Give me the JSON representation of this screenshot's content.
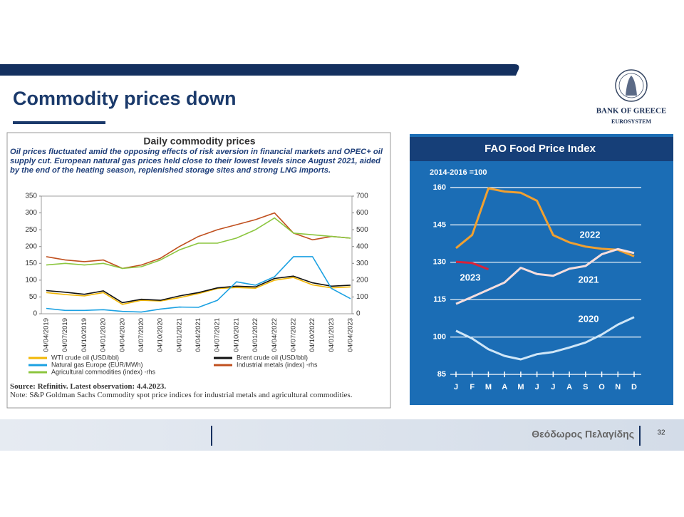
{
  "title": "Commodity prices down",
  "logo": {
    "name": "BANK OF GREECE",
    "tagline": "EUROSYSTEM"
  },
  "footer": {
    "author": "Θεόδωρος Πελαγίδης",
    "page": "32"
  },
  "chart_data": [
    {
      "type": "line",
      "title": "Daily commodity prices",
      "subtitle": "Oil prices fluctuated amid the opposing effects of risk aversion in financial markets and OPEC+ oil supply cut. European natural gas prices held close to their lowest levels since August 2021, aided by the end of the heating season, replenished storage sites and strong LNG imports.",
      "source": "Source: Refinitiv. Latest observation: 4.4.2023.",
      "note": "Note: S&P Goldman Sachs Commodity spot price indices for industrial metals and agricultural commodities.",
      "categories": [
        "04/04/2019",
        "04/07/2019",
        "04/10/2019",
        "04/01/2020",
        "04/04/2020",
        "04/07/2020",
        "04/10/2020",
        "04/01/2021",
        "04/04/2021",
        "04/07/2021",
        "04/10/2021",
        "04/01/2022",
        "04/04/2022",
        "04/07/2022",
        "04/10/2022",
        "04/01/2023",
        "04/04/2023"
      ],
      "ylim": [
        0,
        350
      ],
      "yticks": [
        0,
        50,
        100,
        150,
        200,
        250,
        300,
        350
      ],
      "y2lim": [
        0,
        700
      ],
      "y2ticks": [
        0,
        100,
        200,
        300,
        400,
        500,
        600,
        700
      ],
      "grid": false,
      "series": [
        {
          "name": "WTI crude oil (USD/bbl)",
          "color": "#f2b705",
          "values": [
            63,
            57,
            53,
            63,
            28,
            40,
            38,
            48,
            60,
            75,
            78,
            76,
            100,
            108,
            86,
            77,
            80
          ]
        },
        {
          "name": "Brent crude oil (USD/bbl)",
          "color": "#111111",
          "values": [
            69,
            64,
            58,
            68,
            33,
            43,
            40,
            53,
            63,
            77,
            82,
            80,
            105,
            112,
            92,
            82,
            85
          ]
        },
        {
          "name": "Natural gas Europe (EUR/MWh)",
          "color": "#1ba1e2",
          "values": [
            16,
            10,
            10,
            12,
            7,
            5,
            14,
            20,
            19,
            40,
            95,
            85,
            110,
            170,
            170,
            75,
            45
          ]
        },
        {
          "name": "Industrial metals (index) -rhs",
          "color": "#c0501f",
          "axis": "y2",
          "values": [
            340,
            320,
            310,
            320,
            270,
            290,
            330,
            400,
            460,
            500,
            530,
            560,
            600,
            480,
            440,
            460,
            450
          ]
        },
        {
          "name": "Agricultural commodities (index) -rhs",
          "color": "#8cc63f",
          "axis": "y2",
          "values": [
            290,
            300,
            290,
            300,
            270,
            280,
            320,
            380,
            420,
            420,
            450,
            500,
            570,
            480,
            470,
            460,
            450
          ]
        }
      ]
    },
    {
      "type": "line",
      "title": "FAO Food Price Index",
      "subtitle": "2014-2016 =100",
      "categories": [
        "J",
        "F",
        "M",
        "A",
        "M",
        "J",
        "J",
        "A",
        "S",
        "O",
        "N",
        "D"
      ],
      "ylim": [
        85,
        160
      ],
      "yticks": [
        85,
        100,
        115,
        130,
        145,
        160
      ],
      "grid": true,
      "series": [
        {
          "name": "2022",
          "color": "#f0a030",
          "values": [
            135.7,
            141,
            159.7,
            158.4,
            157.9,
            154.7,
            140.9,
            138,
            136.3,
            135.4,
            135,
            132.4
          ]
        },
        {
          "name": "2021",
          "color": "#f6dede",
          "values": [
            113.3,
            116.1,
            119,
            121.9,
            127.8,
            125.3,
            124.6,
            127.4,
            128.5,
            133.2,
            135.3,
            133.7
          ]
        },
        {
          "name": "2020",
          "color": "#cfe6f7",
          "values": [
            102.5,
            99.4,
            95.1,
            92.4,
            91,
            93.1,
            94,
            95.8,
            97.8,
            101,
            105,
            108
          ]
        },
        {
          "name": "2023",
          "color": "#d8233a",
          "values": [
            130.2,
            129.7,
            127.2,
            null,
            null,
            null,
            null,
            null,
            null,
            null,
            null,
            null
          ]
        }
      ]
    }
  ]
}
